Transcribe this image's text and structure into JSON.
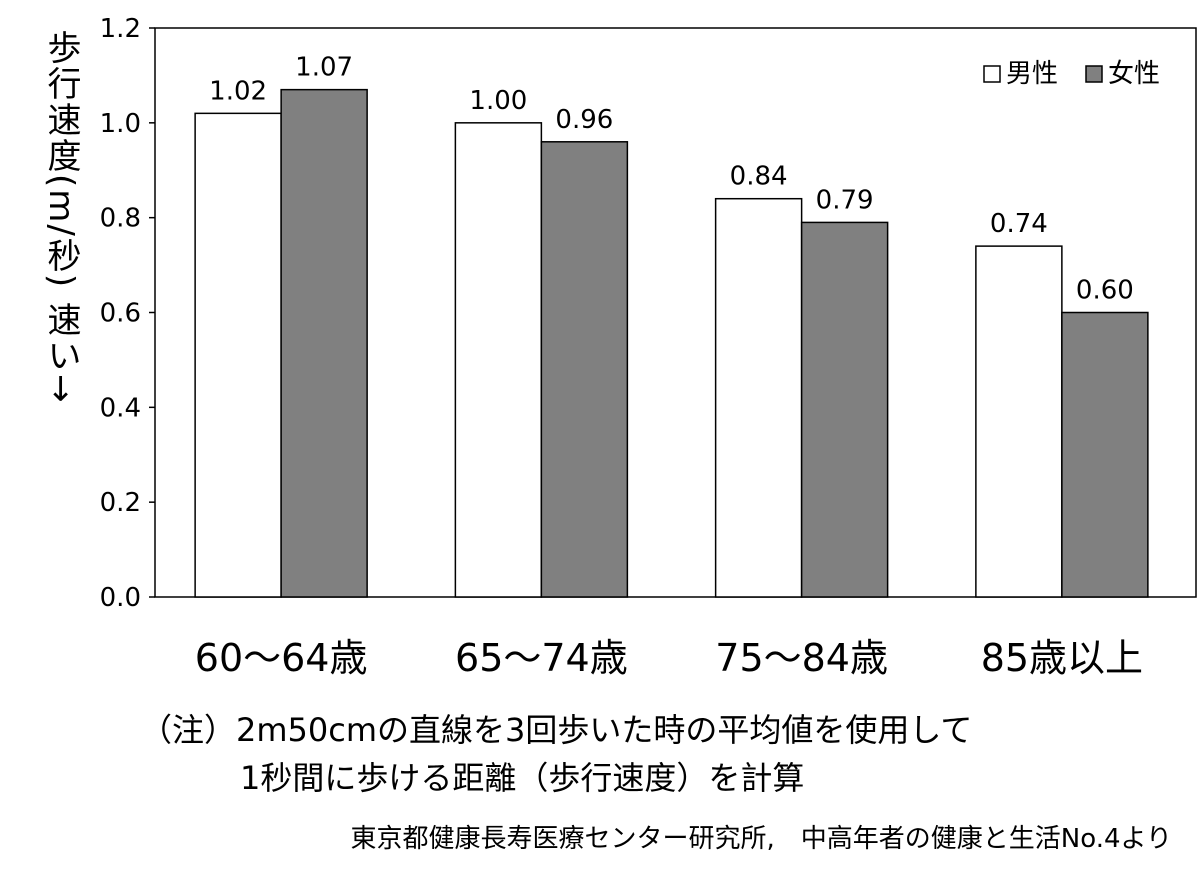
{
  "chart_data": {
    "type": "bar",
    "categories": [
      "60～64歳",
      "65～74歳",
      "75～84歳",
      "85歳以上"
    ],
    "series": [
      {
        "name": "男性",
        "values": [
          1.02,
          1.0,
          0.84,
          0.74
        ],
        "color": "#ffffff"
      },
      {
        "name": "女性",
        "values": [
          1.07,
          0.96,
          0.79,
          0.6
        ],
        "color": "#808080"
      }
    ],
    "value_labels": [
      [
        "1.02",
        "1.00",
        "0.84",
        "0.74"
      ],
      [
        "1.07",
        "0.96",
        "0.79",
        "0.60"
      ]
    ],
    "ylabel": "歩行速度(m/秒)",
    "ylabel_note": "速い→",
    "ylim": [
      0,
      1.2
    ],
    "yticks": [
      "0.0",
      "0.2",
      "0.4",
      "0.6",
      "0.8",
      "1.0",
      "1.2"
    ],
    "legend_position": "top-right",
    "grid": false
  },
  "note": {
    "line1": "（注）2m50cmの直線を3回歩いた時の平均値を使用して",
    "line2": "1秒間に歩ける距離（歩行速度）を計算"
  },
  "source": "東京都健康長寿医療センター研究所,　中高年者の健康と生活No.4より"
}
